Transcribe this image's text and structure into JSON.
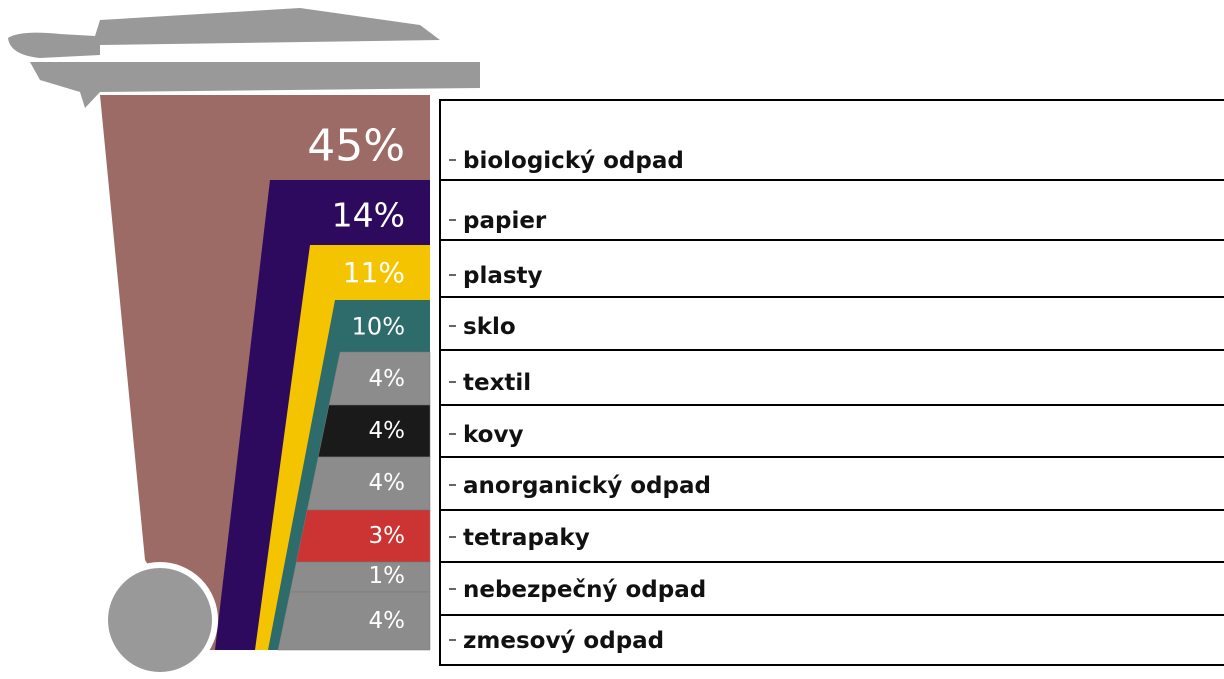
{
  "items": [
    {
      "percent": "45%",
      "label": "biologický odpad"
    },
    {
      "percent": "14%",
      "label": "papier"
    },
    {
      "percent": "11%",
      "label": "plasty"
    },
    {
      "percent": "10%",
      "label": "sklo"
    },
    {
      "percent": "4%",
      "label": "textil"
    },
    {
      "percent": "4%",
      "label": "kovy"
    },
    {
      "percent": "4%",
      "label": "anorganický odpad"
    },
    {
      "percent": "3%",
      "label": "tetrapaky"
    },
    {
      "percent": "1%",
      "label": "nebezpečný odpad"
    },
    {
      "percent": "4%",
      "label": "zmesový odpad"
    }
  ]
}
